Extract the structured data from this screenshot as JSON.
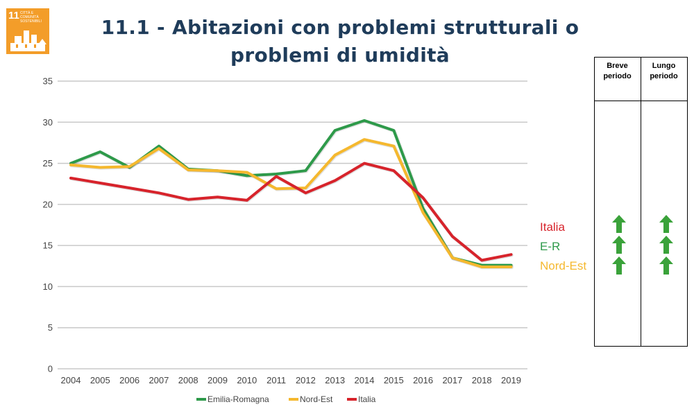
{
  "badge": {
    "number": "11",
    "caption": "CITTÀ E COMUNITÀ SOSTENIBILI"
  },
  "title": "11.1 - Abitazioni con problemi strutturali o problemi di umidità",
  "chart_data": {
    "type": "line",
    "title": "11.1 - Abitazioni con problemi strutturali o problemi di umidità",
    "x": [
      2004,
      2005,
      2006,
      2007,
      2008,
      2009,
      2010,
      2011,
      2012,
      2013,
      2014,
      2015,
      2016,
      2017,
      2018,
      2019
    ],
    "ylim": [
      0,
      35
    ],
    "yticks": [
      0,
      5,
      10,
      15,
      20,
      25,
      30,
      35
    ],
    "grid": true,
    "legend_position": "bottom",
    "series": [
      {
        "name": "Emilia-Romagna",
        "color": "#2e9a4a",
        "values": [
          25.0,
          26.4,
          24.5,
          27.1,
          24.3,
          24.1,
          23.5,
          23.7,
          24.1,
          29.0,
          30.2,
          29.0,
          19.5,
          13.5,
          12.6,
          12.6
        ]
      },
      {
        "name": "Nord-Est",
        "color": "#f5b82e",
        "values": [
          24.8,
          24.5,
          24.6,
          26.8,
          24.2,
          24.1,
          23.9,
          21.9,
          22.0,
          26.0,
          27.9,
          27.1,
          19.0,
          13.5,
          12.4,
          12.4
        ]
      },
      {
        "name": "Italia",
        "color": "#d7232b",
        "values": [
          23.2,
          22.6,
          22.0,
          21.4,
          20.6,
          20.9,
          20.5,
          23.4,
          21.4,
          22.9,
          25.0,
          24.1,
          20.8,
          16.1,
          13.2,
          13.9
        ]
      }
    ]
  },
  "series_labels": [
    {
      "text": "Italia",
      "color": "#d7232b"
    },
    {
      "text": "E-R",
      "color": "#2e9a4a"
    },
    {
      "text": "Nord-Est",
      "color": "#f5b82e"
    }
  ],
  "trend_table": {
    "headers": [
      "Breve periodo",
      "Lungo periodo"
    ],
    "arrow_color": "#3aa23a",
    "short_term": [
      "up",
      "up",
      "up"
    ],
    "long_term": [
      "up",
      "up",
      "up"
    ]
  }
}
